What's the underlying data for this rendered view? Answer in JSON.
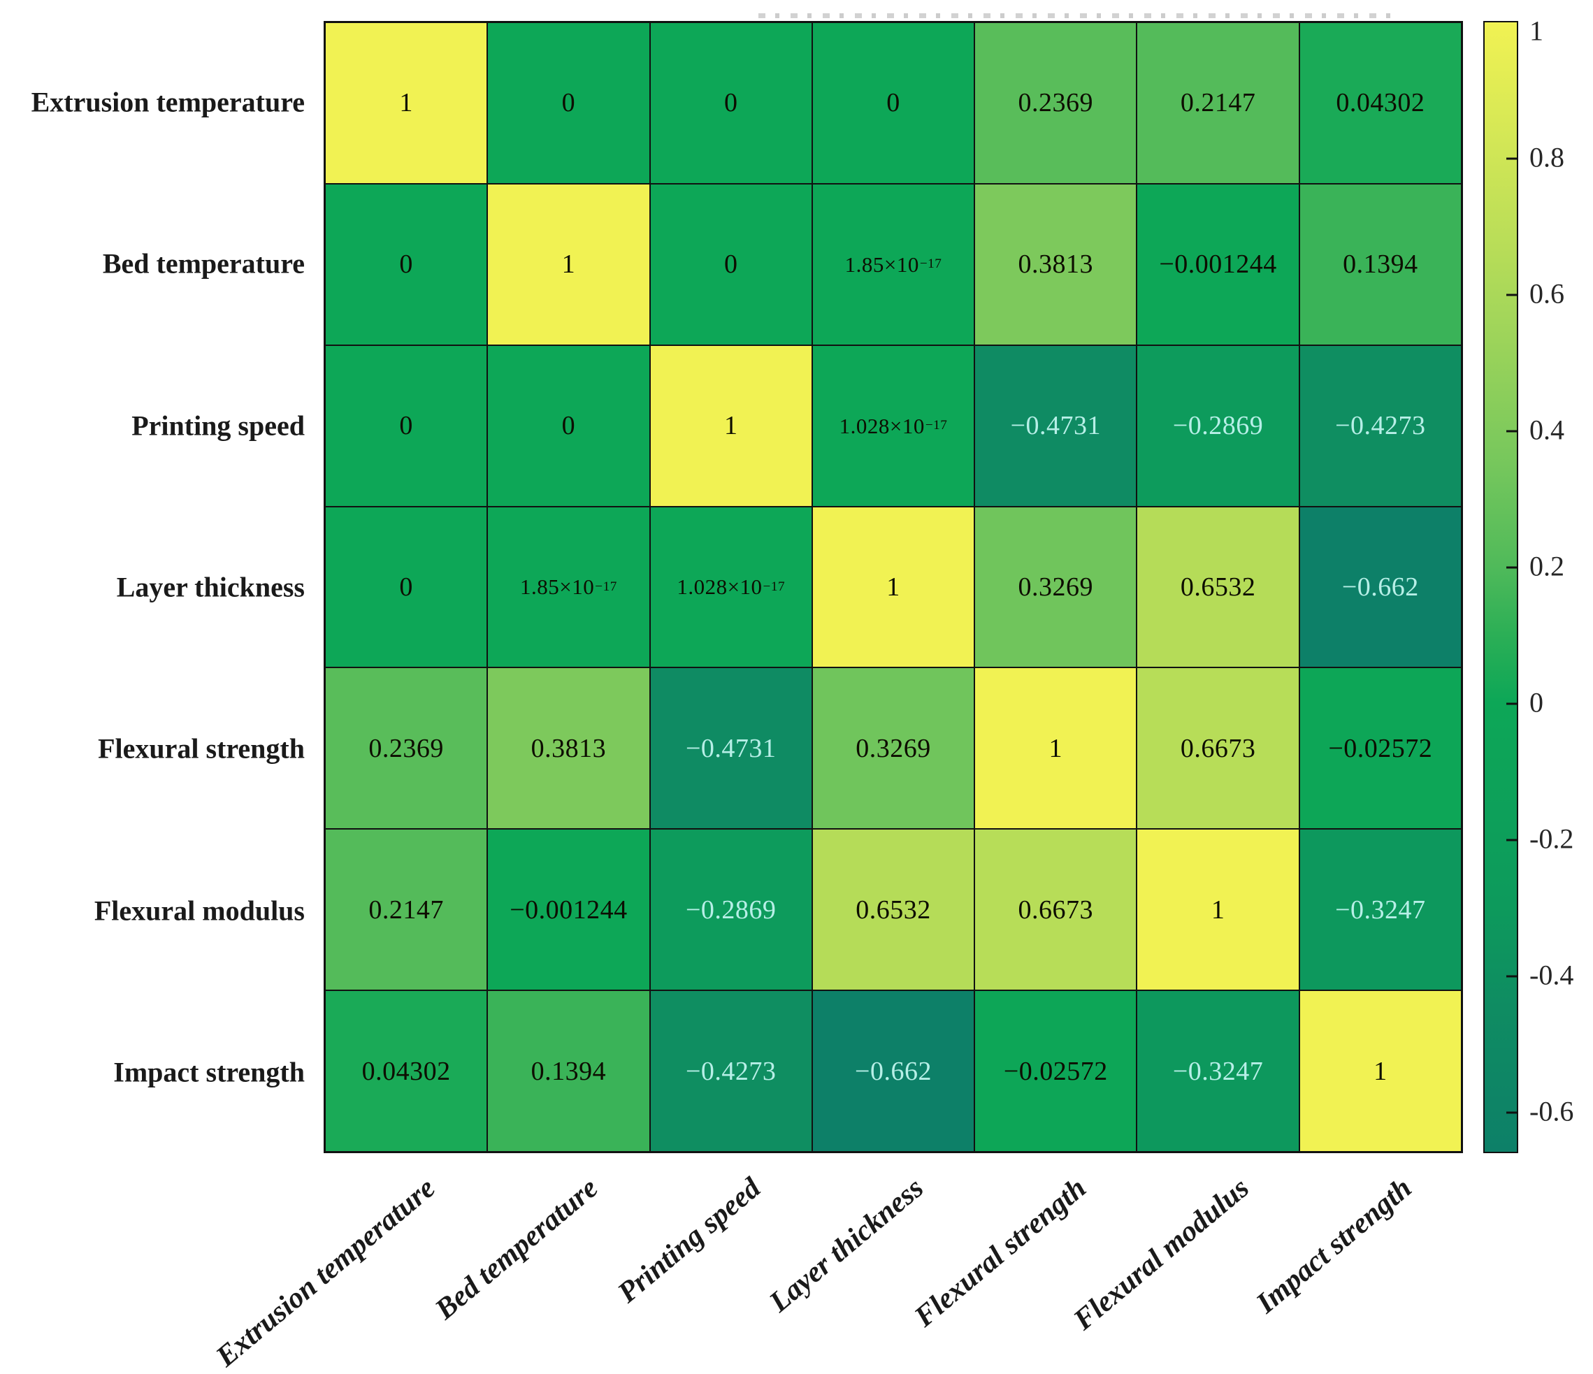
{
  "figure": {
    "kind": "correlation-matrix-figure",
    "background": "#ffffff",
    "grid_line_color": "#111111"
  },
  "chart_data": {
    "type": "heatmap",
    "title": "",
    "categories": [
      "Extrusion temperature",
      "Bed temperature",
      "Printing speed",
      "Layer thickness",
      "Flexural strength",
      "Flexural modulus",
      "Impact strength"
    ],
    "matrix": [
      [
        1,
        0,
        0,
        0,
        0.2369,
        0.2147,
        0.04302
      ],
      [
        0,
        1,
        0,
        0,
        0.3813,
        -0.001244,
        0.1394
      ],
      [
        0,
        0,
        1,
        0,
        -0.4731,
        -0.2869,
        -0.4273
      ],
      [
        0,
        0,
        0,
        1,
        0.3269,
        0.6532,
        -0.662
      ],
      [
        0.2369,
        0.3813,
        -0.4731,
        0.3269,
        1,
        0.6673,
        -0.02572
      ],
      [
        0.2147,
        -0.001244,
        -0.2869,
        0.6532,
        0.6673,
        1,
        -0.3247
      ],
      [
        0.04302,
        0.1394,
        -0.4273,
        -0.662,
        -0.02572,
        -0.3247,
        1
      ]
    ],
    "display": [
      [
        "1",
        "0",
        "0",
        "0",
        "0.2369",
        "0.2147",
        "0.04302"
      ],
      [
        "0",
        "1",
        "0",
        "1.85×10^−17",
        "0.3813",
        "−0.001244",
        "0.1394"
      ],
      [
        "0",
        "0",
        "1",
        "1.028×10^−17",
        "−0.4731",
        "−0.2869",
        "−0.4273"
      ],
      [
        "0",
        "1.85×10^−17",
        "1.028×10^−17",
        "1",
        "0.3269",
        "0.6532",
        "−0.662"
      ],
      [
        "0.2369",
        "0.3813",
        "−0.4731",
        "0.3269",
        "1",
        "0.6673",
        "−0.02572"
      ],
      [
        "0.2147",
        "−0.001244",
        "−0.2869",
        "0.6532",
        "0.6673",
        "1",
        "−0.3247"
      ],
      [
        "0.04302",
        "0.1394",
        "−0.4273",
        "−0.662",
        "−0.02572",
        "−0.3247",
        "1"
      ]
    ],
    "colorbar": {
      "vmin": -0.662,
      "vmax": 1,
      "ticks": [
        1,
        0.8,
        0.6,
        0.4,
        0.2,
        0,
        -0.2,
        -0.4,
        -0.6
      ],
      "tick_labels": [
        "1",
        "0.8",
        "0.6",
        "0.4",
        "0.2",
        "0",
        "-0.2",
        "-0.4",
        "-0.6"
      ]
    },
    "colormap": [
      [
        -0.662,
        "#0d8068"
      ],
      [
        -0.45,
        "#0f8c62"
      ],
      [
        -0.3,
        "#0d9a5c"
      ],
      [
        0,
        "#0da757"
      ],
      [
        0.1,
        "#2caf56"
      ],
      [
        0.2,
        "#50ba5a"
      ],
      [
        0.35,
        "#76c75c"
      ],
      [
        0.55,
        "#a0d55a"
      ],
      [
        0.67,
        "#b8dd58"
      ],
      [
        1,
        "#f1f253"
      ]
    ],
    "text_colors": {
      "dark": "#0d0d00",
      "light": "#b7efe7",
      "light_threshold": -0.1
    },
    "layout": {
      "legend_position": "right-colorbar",
      "x_tick_rotation_deg": -40,
      "grid_on": true
    }
  }
}
